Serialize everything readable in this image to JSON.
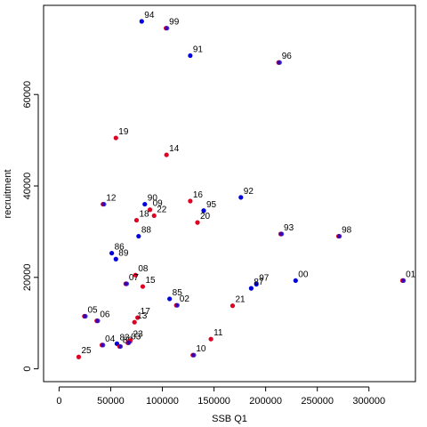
{
  "chart_data": {
    "type": "scatter",
    "title": "",
    "xlabel": "SSB Q1",
    "ylabel": "recruitment",
    "xlim": [
      -15000,
      345000
    ],
    "ylim": [
      -2800,
      79500
    ],
    "xticks": [
      0,
      50000,
      100000,
      150000,
      200000,
      250000,
      300000
    ],
    "yticks": [
      0,
      20000,
      40000,
      60000
    ],
    "grid": false,
    "colors": {
      "blue": "#0000dd",
      "red": "#dd0022"
    },
    "points": [
      {
        "label": "94",
        "x": 80000,
        "y": 76000,
        "color": "blue"
      },
      {
        "label": "99",
        "x": 104000,
        "y": 74500,
        "color": "purple"
      },
      {
        "label": "91",
        "x": 127000,
        "y": 68500,
        "color": "blue"
      },
      {
        "label": "96",
        "x": 213000,
        "y": 67000,
        "color": "purple"
      },
      {
        "label": "19",
        "x": 55000,
        "y": 50500,
        "color": "red"
      },
      {
        "label": "14",
        "x": 104000,
        "y": 46800,
        "color": "red"
      },
      {
        "label": "12",
        "x": 43000,
        "y": 36000,
        "color": "purple"
      },
      {
        "label": "90",
        "x": 83000,
        "y": 36000,
        "color": "blue"
      },
      {
        "label": "16",
        "x": 127000,
        "y": 36700,
        "color": "red"
      },
      {
        "label": "92",
        "x": 176000,
        "y": 37500,
        "color": "blue"
      },
      {
        "label": "09",
        "x": 88000,
        "y": 34800,
        "color": "red"
      },
      {
        "label": "95",
        "x": 140000,
        "y": 34600,
        "color": "blue"
      },
      {
        "label": "22",
        "x": 92000,
        "y": 33500,
        "color": "red"
      },
      {
        "label": "18",
        "x": 75000,
        "y": 32500,
        "color": "red"
      },
      {
        "label": "20",
        "x": 134000,
        "y": 32000,
        "color": "red"
      },
      {
        "label": "93",
        "x": 215000,
        "y": 29500,
        "color": "purple"
      },
      {
        "label": "98",
        "x": 271000,
        "y": 29000,
        "color": "purple"
      },
      {
        "label": "88",
        "x": 77000,
        "y": 29000,
        "color": "blue"
      },
      {
        "label": "86",
        "x": 51000,
        "y": 25300,
        "color": "blue"
      },
      {
        "label": "89",
        "x": 55000,
        "y": 24000,
        "color": "blue"
      },
      {
        "label": "08",
        "x": 74000,
        "y": 20500,
        "color": "red"
      },
      {
        "label": "07",
        "x": 65000,
        "y": 18600,
        "color": "purple"
      },
      {
        "label": "15",
        "x": 81000,
        "y": 18000,
        "color": "red"
      },
      {
        "label": "01",
        "x": 333000,
        "y": 19300,
        "color": "purple"
      },
      {
        "label": "00",
        "x": 229000,
        "y": 19300,
        "color": "blue"
      },
      {
        "label": "97",
        "x": 191000,
        "y": 18500,
        "color": "blue"
      },
      {
        "label": "87",
        "x": 186000,
        "y": 17600,
        "color": "blue"
      },
      {
        "label": "85",
        "x": 107000,
        "y": 15300,
        "color": "blue"
      },
      {
        "label": "02",
        "x": 114000,
        "y": 13900,
        "color": "purple"
      },
      {
        "label": "21",
        "x": 168000,
        "y": 13800,
        "color": "red"
      },
      {
        "label": "05",
        "x": 25000,
        "y": 11500,
        "color": "purple"
      },
      {
        "label": "06",
        "x": 37000,
        "y": 10500,
        "color": "purple"
      },
      {
        "label": "17",
        "x": 76000,
        "y": 11200,
        "color": "red"
      },
      {
        "label": "13",
        "x": 73000,
        "y": 10200,
        "color": "red"
      },
      {
        "label": "04",
        "x": 42000,
        "y": 5200,
        "color": "purple"
      },
      {
        "label": "83",
        "x": 56000,
        "y": 5500,
        "color": "blue"
      },
      {
        "label": "82",
        "x": 59000,
        "y": 4900,
        "color": "purple"
      },
      {
        "label": "23",
        "x": 69000,
        "y": 6200,
        "color": "red"
      },
      {
        "label": "03",
        "x": 67000,
        "y": 5700,
        "color": "purple"
      },
      {
        "label": "11",
        "x": 147000,
        "y": 6500,
        "color": "red"
      },
      {
        "label": "10",
        "x": 130000,
        "y": 3000,
        "color": "purple"
      },
      {
        "label": "25",
        "x": 19000,
        "y": 2600,
        "color": "red"
      }
    ]
  }
}
